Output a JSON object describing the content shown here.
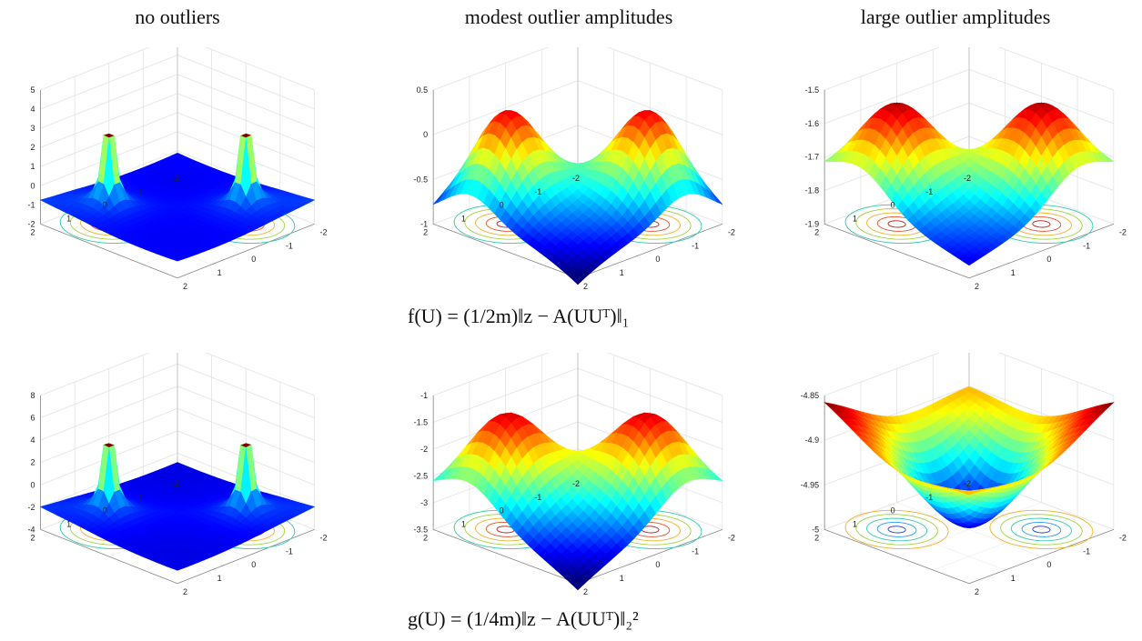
{
  "column_titles": [
    "no outliers",
    "modest outlier amplitudes",
    "large outlier amplitudes"
  ],
  "formulas": {
    "f": "f(U) = (1/2m)‖z − A(UUᵀ)‖₁",
    "g": "g(U) = (1/4m)‖z − A(UUᵀ)‖₂²"
  },
  "chart_data": [
    {
      "type": "surface",
      "row": "f",
      "column": "no outliers",
      "zticks": [
        "5",
        "4",
        "3",
        "2",
        "1",
        "0",
        "-1",
        "-2"
      ],
      "zlim": [
        -2,
        5
      ],
      "xticks": [
        "-2",
        "-1",
        "0",
        "1",
        "2"
      ],
      "yticks": [
        "2",
        "1",
        "0",
        "-1",
        "-2"
      ],
      "colormap": "jet",
      "contours": true
    },
    {
      "type": "surface",
      "row": "f",
      "column": "modest outlier amplitudes",
      "zticks": [
        "0.5",
        "0",
        "-0.5",
        "-1"
      ],
      "zlim": [
        -1.2,
        0.5
      ],
      "xticks": [
        "-2",
        "-1",
        "0",
        "1",
        "2"
      ],
      "yticks": [
        "2",
        "1",
        "0",
        "-1",
        "-2"
      ],
      "colormap": "jet",
      "contours": true
    },
    {
      "type": "surface",
      "row": "f",
      "column": "large outlier amplitudes",
      "zticks": [
        "-1.5",
        "-1.6",
        "-1.7",
        "-1.8",
        "-1.9"
      ],
      "zlim": [
        -1.9,
        -1.5
      ],
      "xticks": [
        "-2",
        "-1",
        "0",
        "1",
        "2"
      ],
      "yticks": [
        "2",
        "1",
        "0",
        "-1",
        "-2"
      ],
      "colormap": "jet",
      "contours": true
    },
    {
      "type": "surface",
      "row": "g",
      "column": "no outliers",
      "zticks": [
        "8",
        "6",
        "4",
        "2",
        "0",
        "-2",
        "-4"
      ],
      "zlim": [
        -4,
        9
      ],
      "xticks": [
        "-2",
        "-1",
        "0",
        "1",
        "2"
      ],
      "yticks": [
        "2",
        "1",
        "0",
        "-1",
        "-2"
      ],
      "colormap": "jet",
      "contours": true
    },
    {
      "type": "surface",
      "row": "g",
      "column": "modest outlier amplitudes",
      "zticks": [
        "-1",
        "-1.5",
        "-2",
        "-2.5",
        "-3",
        "-3.5"
      ],
      "zlim": [
        -3.5,
        -1
      ],
      "xticks": [
        "-2",
        "-1",
        "0",
        "1",
        "2"
      ],
      "yticks": [
        "2",
        "1",
        "0",
        "-1",
        "-2"
      ],
      "colormap": "jet",
      "contours": true
    },
    {
      "type": "surface",
      "row": "g",
      "column": "large outlier amplitudes",
      "zticks": [
        "-4.85",
        "-4.9",
        "-4.95",
        "-5"
      ],
      "zlim": [
        -5,
        -4.85
      ],
      "xticks": [
        "-2",
        "-1",
        "0",
        "1",
        "2"
      ],
      "yticks": [
        "2",
        "1",
        "0",
        "-1",
        "-2"
      ],
      "colormap": "jet",
      "contours": true
    }
  ]
}
